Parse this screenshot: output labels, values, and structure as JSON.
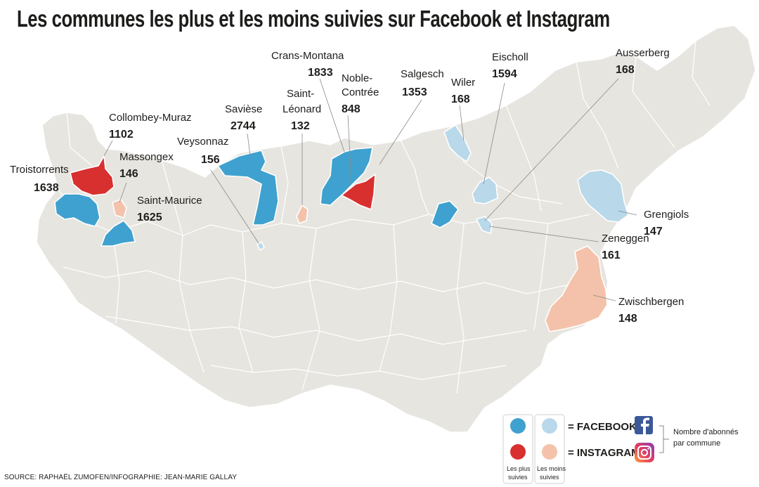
{
  "title": "Les communes les plus et les moins suivies sur Facebook et Instagram",
  "source": "SOURCE: RAPHAËL ZUMOFEN/INFOGRAPHIE: JEAN-MARIE GALLAY",
  "colors": {
    "facebook_most": "#3fa1cf",
    "facebook_least": "#b9d8ea",
    "instagram_most": "#d8302f",
    "instagram_least": "#f4c2aa",
    "base": "#e7e5e0"
  },
  "communes": {
    "troistorrents": {
      "name": "Troistorrents",
      "value": "1638",
      "category": "facebook_most"
    },
    "collombey": {
      "name": "Collombey-Muraz",
      "value": "1102",
      "category": "instagram_most"
    },
    "massongex": {
      "name": "Massongex",
      "value": "146",
      "category": "instagram_least"
    },
    "saint_maurice": {
      "name": "Saint-Maurice",
      "value": "1625",
      "category": "facebook_most"
    },
    "veysonnaz": {
      "name": "Veysonnaz",
      "value": "156",
      "category": "facebook_least"
    },
    "saviese": {
      "name": "Savièse",
      "value": "2744",
      "category": "facebook_most"
    },
    "saint_leonard": {
      "name_line1": "Saint-",
      "name_line2": "Léonard",
      "value": "132",
      "category": "instagram_least"
    },
    "crans_montana": {
      "name": "Crans-Montana",
      "value": "1833",
      "category": "facebook_most"
    },
    "noble_contree": {
      "name_line1": "Noble-",
      "name_line2": "Contrée",
      "value": "848",
      "category": "instagram_most"
    },
    "salgesch": {
      "name": "Salgesch",
      "value": "1353",
      "category": "facebook_most"
    },
    "wiler": {
      "name": "Wiler",
      "value": "168",
      "category": "facebook_least"
    },
    "eischoll": {
      "name": "Eischoll",
      "value": "1594",
      "category": "facebook_least"
    },
    "ausserberg": {
      "name": "Ausserberg",
      "value": "168",
      "category": "facebook_least"
    },
    "grengiols": {
      "name": "Grengiols",
      "value": "147",
      "category": "facebook_least"
    },
    "zeneggen": {
      "name": "Zeneggen",
      "value": "161",
      "category": "facebook_least"
    },
    "zwischbergen": {
      "name": "Zwischbergen",
      "value": "148",
      "category": "instagram_least"
    }
  },
  "legend": {
    "facebook": "= FACEBOOK",
    "instagram": "= INSTAGRAM",
    "most_line1": "Les plus",
    "most_line2": "suivies",
    "least_line1": "Les moins",
    "least_line2": "suivies",
    "note_line1": "Nombre d'abonnés",
    "note_line2": "par commune",
    "facebook_icon": "facebook-icon",
    "instagram_icon": "instagram-icon"
  }
}
